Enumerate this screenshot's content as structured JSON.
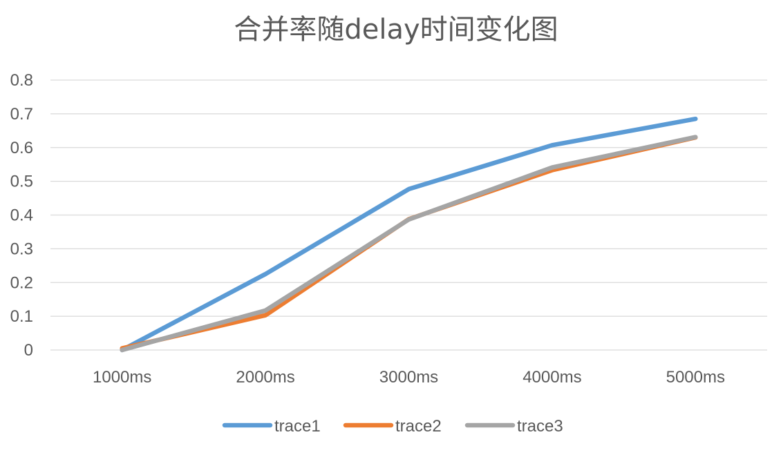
{
  "chart_data": {
    "type": "line",
    "title": "合并率随delay时间变化图",
    "xlabel": "",
    "ylabel": "",
    "categories": [
      "1000ms",
      "2000ms",
      "3000ms",
      "4000ms",
      "5000ms"
    ],
    "ylim": [
      0,
      0.8
    ],
    "yticks": [
      "0",
      "0.1",
      "0.2",
      "0.3",
      "0.4",
      "0.5",
      "0.6",
      "0.7",
      "0.8"
    ],
    "grid": true,
    "legend_position": "bottom",
    "series": [
      {
        "name": "trace1",
        "color": "#5b9bd5",
        "values": [
          0,
          0.225,
          0.477,
          0.607,
          0.685
        ]
      },
      {
        "name": "trace2",
        "color": "#ed7d31",
        "values": [
          0.005,
          0.103,
          0.388,
          0.533,
          0.63
        ]
      },
      {
        "name": "trace3",
        "color": "#a5a5a5",
        "values": [
          0,
          0.117,
          0.387,
          0.541,
          0.631
        ]
      }
    ]
  }
}
